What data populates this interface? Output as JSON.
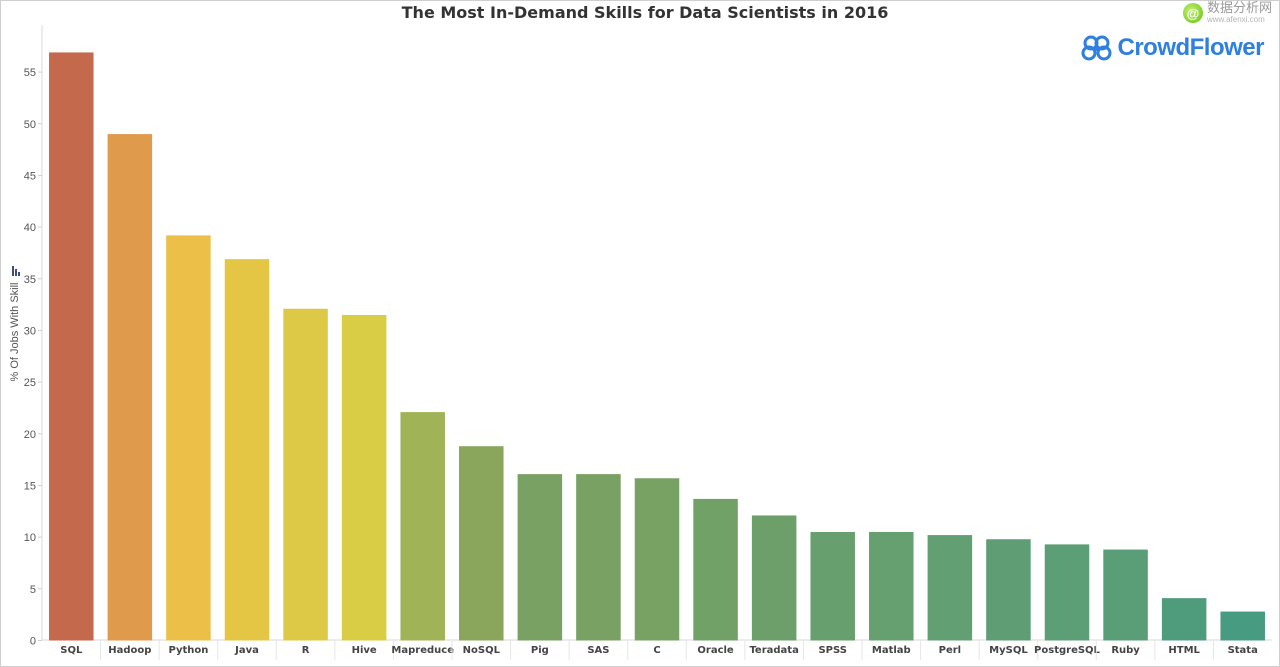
{
  "watermark": {
    "name": "数据分析网",
    "url": "www.afenxi.com"
  },
  "brand": {
    "name": "CrowdFlower"
  },
  "chart_data": {
    "type": "bar",
    "title": "The Most In-Demand Skills for Data Scientists in 2016",
    "xlabel": "",
    "ylabel": "% Of Jobs With Skill",
    "ylim": [
      0,
      60
    ],
    "yticks": [
      0,
      5,
      10,
      15,
      20,
      25,
      30,
      35,
      40,
      45,
      50,
      55
    ],
    "grid": false,
    "categories": [
      "SQL",
      "Hadoop",
      "Python",
      "Java",
      "R",
      "Hive",
      "Mapreduce",
      "NoSQL",
      "Pig",
      "SAS",
      "C",
      "Oracle",
      "Teradata",
      "SPSS",
      "Matlab",
      "Perl",
      "MySQL",
      "PostgreSQL",
      "Ruby",
      "HTML",
      "Stata"
    ],
    "values": [
      56.9,
      49.0,
      39.2,
      36.9,
      32.1,
      31.5,
      22.1,
      18.8,
      16.1,
      16.1,
      15.7,
      13.7,
      12.1,
      10.5,
      10.5,
      10.2,
      9.8,
      9.3,
      8.8,
      4.1,
      2.8
    ],
    "colors": [
      "#c4694c",
      "#df9a4c",
      "#ecbf48",
      "#e5c644",
      "#ddc946",
      "#d8cd45",
      "#a0b356",
      "#8aa65c",
      "#78a163",
      "#78a163",
      "#77a264",
      "#72a167",
      "#6c9f6a",
      "#679f6e",
      "#669f70",
      "#629f72",
      "#5f9e74",
      "#5c9e76",
      "#5a9e78",
      "#4f9c7c",
      "#479b80"
    ]
  }
}
